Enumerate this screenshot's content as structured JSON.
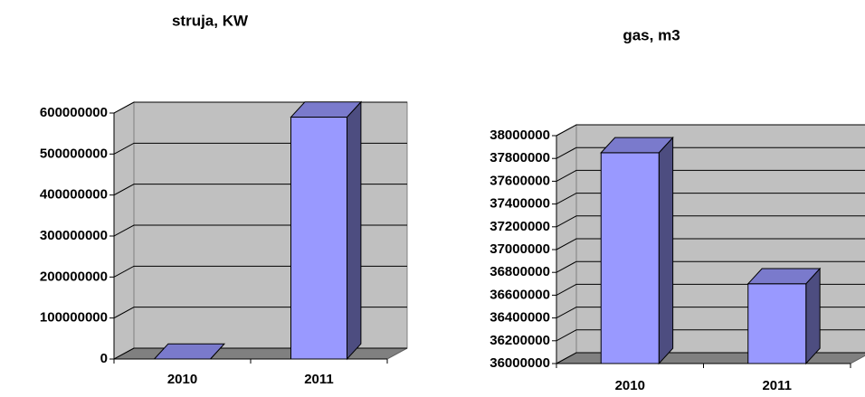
{
  "chart_data": [
    {
      "type": "bar3d",
      "title": "struja, KW",
      "categories": [
        "2010",
        "2011"
      ],
      "values": [
        0,
        590000000
      ],
      "color": "#9999ff",
      "ylim": [
        0,
        600000000
      ],
      "yticks": [
        0,
        100000000,
        200000000,
        300000000,
        400000000,
        500000000,
        600000000
      ],
      "grid": true
    },
    {
      "type": "bar3d",
      "title": "gas, m3",
      "categories": [
        "2010",
        "2011"
      ],
      "values": [
        37850000,
        36700000
      ],
      "color": "#9999ff",
      "ylim": [
        36000000,
        38000000
      ],
      "yticks": [
        36000000,
        36200000,
        36400000,
        36600000,
        36800000,
        37000000,
        37200000,
        37400000,
        37600000,
        37800000,
        38000000
      ],
      "grid": true
    }
  ]
}
